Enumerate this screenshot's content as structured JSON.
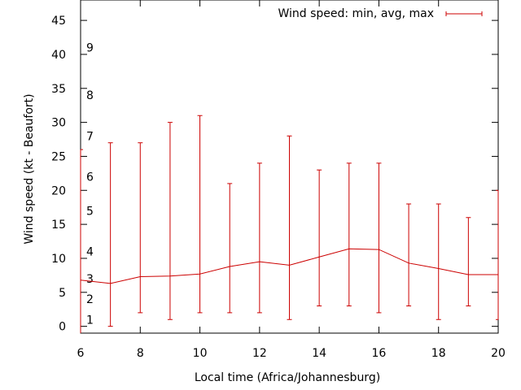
{
  "chart_data": {
    "type": "line",
    "xlabel": "Local time (Africa/Johannesburg)",
    "ylabel": "Wind speed (kt - Beaufort)",
    "xlim": [
      6,
      20
    ],
    "ylim": [
      -1,
      48
    ],
    "xticks": [
      6,
      8,
      10,
      12,
      14,
      16,
      18,
      20
    ],
    "yticks": [
      0,
      5,
      10,
      15,
      20,
      25,
      30,
      35,
      40,
      45
    ],
    "legend": {
      "label": "Wind speed: min, avg, max",
      "position": "top-right"
    },
    "beaufort": [
      {
        "label": "1",
        "kt": 1
      },
      {
        "label": "2",
        "kt": 4
      },
      {
        "label": "3",
        "kt": 7
      },
      {
        "label": "4",
        "kt": 11
      },
      {
        "label": "5",
        "kt": 17
      },
      {
        "label": "6",
        "kt": 22
      },
      {
        "label": "7",
        "kt": 28
      },
      {
        "label": "8",
        "kt": 34
      },
      {
        "label": "9",
        "kt": 41
      }
    ],
    "series": [
      {
        "name": "Wind speed: min, avg, max",
        "color": "#cc0000",
        "x": [
          6,
          7,
          8,
          9,
          10,
          11,
          12,
          13,
          14,
          15,
          16,
          17,
          18,
          19,
          20
        ],
        "avg": [
          6.8,
          6.3,
          7.3,
          7.4,
          7.7,
          8.8,
          9.5,
          9.0,
          10.2,
          11.4,
          11.3,
          9.3,
          8.5,
          7.6,
          7.6
        ],
        "min": [
          null,
          0,
          2,
          1,
          2,
          2,
          2,
          1,
          3,
          3,
          2,
          3,
          1,
          3,
          1
        ],
        "max": [
          26,
          27,
          27,
          30,
          31,
          21,
          24,
          28,
          23,
          24,
          24,
          18,
          18,
          16,
          20
        ]
      }
    ]
  }
}
